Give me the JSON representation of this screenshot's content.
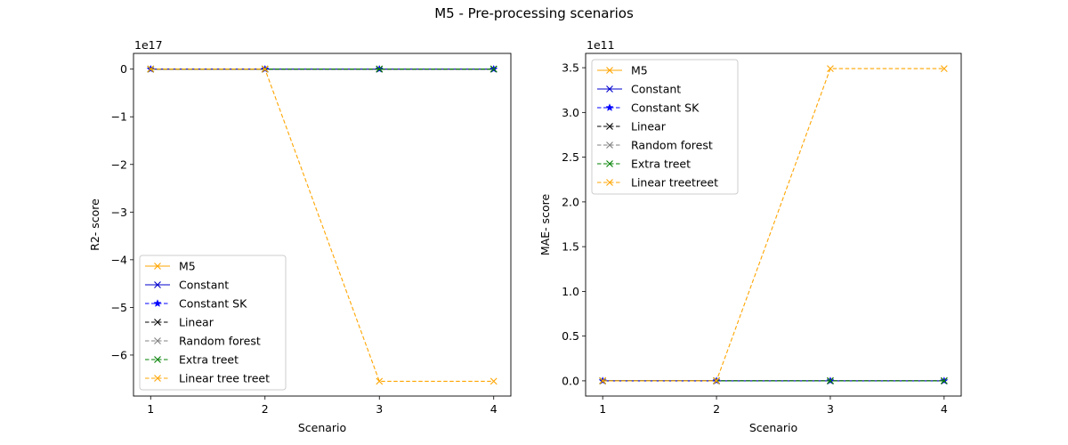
{
  "figure": {
    "title": "M5 - Pre-processing scenarios"
  },
  "chart_data": [
    {
      "type": "line",
      "xlabel": "Scenario",
      "ylabel": "R2- score",
      "offset_text": "1e17",
      "x": [
        1,
        2,
        3,
        4
      ],
      "x_ticks": [
        "1",
        "2",
        "3",
        "4"
      ],
      "xlim": [
        0.85,
        4.15
      ],
      "ylim": [
        -6.86,
        0.33
      ],
      "y_ticks": [
        0,
        -1,
        -2,
        -3,
        -4,
        -5,
        -6
      ],
      "y_tick_labels": [
        "0",
        "−1",
        "−2",
        "−3",
        "−4",
        "−5",
        "−6"
      ],
      "legend_position": "lower-left",
      "series": [
        {
          "name": "M5",
          "values": [
            0,
            0,
            0,
            0
          ],
          "color": "#FFA500",
          "dash": "solid",
          "marker": "x"
        },
        {
          "name": "Constant",
          "values": [
            0,
            0,
            0,
            0
          ],
          "color": "#0000CD",
          "dash": "solid",
          "marker": "x"
        },
        {
          "name": "Constant SK",
          "values": [
            0,
            0,
            0,
            0
          ],
          "color": "#0000FF",
          "dash": "dashed",
          "marker": "star"
        },
        {
          "name": "Linear",
          "values": [
            0,
            0,
            0,
            0
          ],
          "color": "#000000",
          "dash": "dashed",
          "marker": "x"
        },
        {
          "name": "Random forest",
          "values": [
            0,
            0,
            0,
            0
          ],
          "color": "#808080",
          "dash": "dashed",
          "marker": "x"
        },
        {
          "name": "Extra treet",
          "values": [
            0,
            0,
            0,
            0
          ],
          "color": "#008000",
          "dash": "dashed",
          "marker": "x"
        },
        {
          "name": "Linear tree treet",
          "values": [
            0,
            0,
            -6.55,
            -6.55
          ],
          "color": "#FFA500",
          "dash": "dashed",
          "marker": "x"
        }
      ]
    },
    {
      "type": "line",
      "xlabel": "Scenario",
      "ylabel": "MAE- score",
      "offset_text": "1e11",
      "x": [
        1,
        2,
        3,
        4
      ],
      "x_ticks": [
        "1",
        "2",
        "3",
        "4"
      ],
      "xlim": [
        0.85,
        4.15
      ],
      "ylim": [
        -0.17,
        3.66
      ],
      "y_ticks": [
        0,
        0.5,
        1.0,
        1.5,
        2.0,
        2.5,
        3.0,
        3.5
      ],
      "y_tick_labels": [
        "0.0",
        "0.5",
        "1.0",
        "1.5",
        "2.0",
        "2.5",
        "3.0",
        "3.5"
      ],
      "legend_position": "upper-left",
      "series": [
        {
          "name": "M5",
          "values": [
            0,
            0,
            0,
            0
          ],
          "color": "#FFA500",
          "dash": "solid",
          "marker": "x"
        },
        {
          "name": "Constant",
          "values": [
            0,
            0,
            0,
            0
          ],
          "color": "#0000CD",
          "dash": "solid",
          "marker": "x"
        },
        {
          "name": "Constant SK",
          "values": [
            0,
            0,
            0,
            0
          ],
          "color": "#0000FF",
          "dash": "dashed",
          "marker": "star"
        },
        {
          "name": "Linear",
          "values": [
            0,
            0,
            0,
            0
          ],
          "color": "#000000",
          "dash": "dashed",
          "marker": "x"
        },
        {
          "name": "Random forest",
          "values": [
            0,
            0,
            0,
            0
          ],
          "color": "#808080",
          "dash": "dashed",
          "marker": "x"
        },
        {
          "name": "Extra treet",
          "values": [
            0,
            0,
            0,
            0
          ],
          "color": "#008000",
          "dash": "dashed",
          "marker": "x"
        },
        {
          "name": "Linear treetreet",
          "values": [
            0,
            0,
            3.49,
            3.49
          ],
          "color": "#FFA500",
          "dash": "dashed",
          "marker": "x"
        }
      ]
    }
  ]
}
